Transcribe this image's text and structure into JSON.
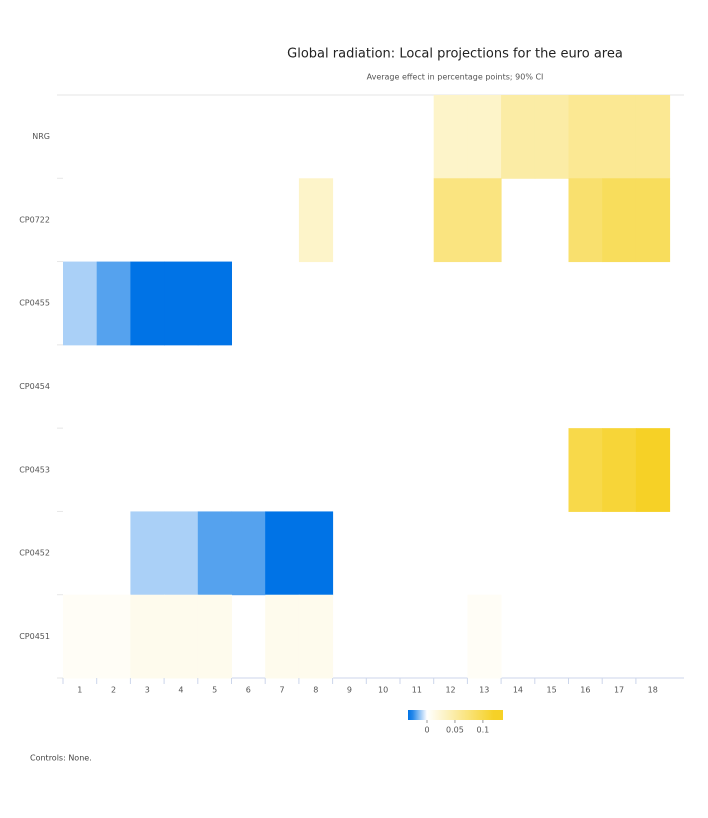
{
  "chart_data": {
    "type": "heatmap",
    "title": "Global radiation: Local projections for the euro area",
    "subtitle": "Average effect in percentage points; 90% CI",
    "note": "Controls: None.",
    "x_categories": [
      "1",
      "2",
      "3",
      "4",
      "5",
      "6",
      "7",
      "8",
      "9",
      "10",
      "11",
      "12",
      "13",
      "14",
      "15",
      "16",
      "17",
      "18"
    ],
    "y_categories": [
      "NRG",
      "CP0722",
      "CP0455",
      "CP0454",
      "CP0453",
      "CP0452",
      "CP0451"
    ],
    "z": [
      [
        null,
        null,
        null,
        null,
        null,
        null,
        null,
        null,
        null,
        null,
        null,
        0.03,
        0.03,
        0.05,
        0.05,
        0.06,
        0.06,
        0.06
      ],
      [
        null,
        null,
        null,
        null,
        null,
        null,
        null,
        0.03,
        null,
        null,
        null,
        0.07,
        0.07,
        null,
        null,
        0.08,
        0.09,
        0.09
      ],
      [
        -0.01,
        -0.02,
        -0.03,
        -0.03,
        -0.03,
        null,
        null,
        null,
        null,
        null,
        null,
        null,
        null,
        null,
        null,
        null,
        null,
        null
      ],
      [
        null,
        null,
        null,
        null,
        null,
        null,
        null,
        null,
        null,
        null,
        null,
        null,
        null,
        null,
        null,
        null,
        null,
        null
      ],
      [
        null,
        null,
        null,
        null,
        null,
        null,
        null,
        null,
        null,
        null,
        null,
        null,
        null,
        null,
        null,
        0.1,
        0.11,
        0.12
      ],
      [
        null,
        null,
        -0.01,
        -0.01,
        -0.02,
        -0.02,
        -0.03,
        -0.03,
        null,
        null,
        null,
        null,
        null,
        null,
        null,
        null,
        null,
        null
      ],
      [
        0.005,
        0.005,
        0.01,
        0.01,
        0.01,
        null,
        0.01,
        0.01,
        null,
        null,
        null,
        null,
        0.005,
        null,
        null,
        null,
        null,
        null
      ]
    ],
    "colorscale": [
      {
        "value": -0.03,
        "color": "#0073e6"
      },
      {
        "value": 0,
        "color": "#ffffff"
      },
      {
        "value": 0.12,
        "color": "#f6d126"
      }
    ],
    "clim": [
      -0.034,
      0.136
    ],
    "cticks": [
      0,
      0.05,
      0.1
    ]
  }
}
